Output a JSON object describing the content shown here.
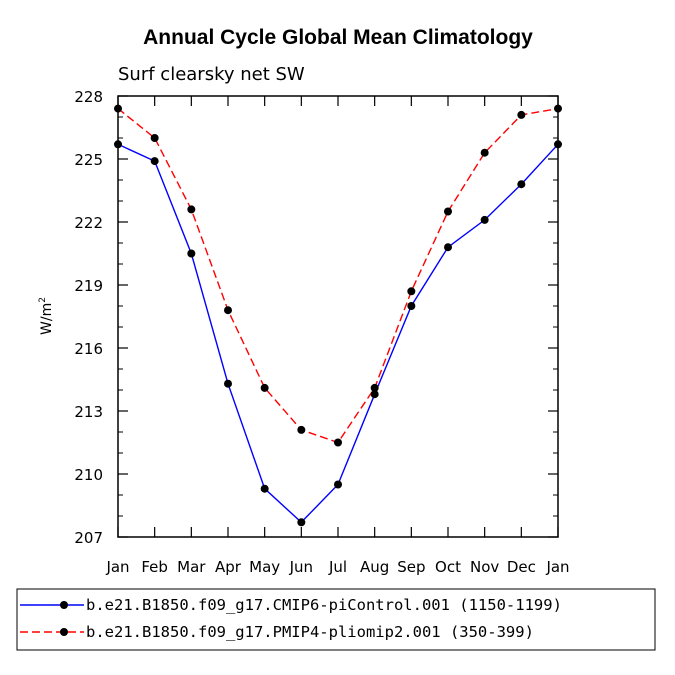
{
  "chart_data": {
    "type": "line",
    "title": "Annual Cycle Global Mean Climatology",
    "subtitle": "Surf clearsky net SW",
    "xlabel": "",
    "ylabel": "W/m",
    "ylabel_superscript": "2",
    "categories": [
      "Jan",
      "Feb",
      "Mar",
      "Apr",
      "May",
      "Jun",
      "Jul",
      "Aug",
      "Sep",
      "Oct",
      "Nov",
      "Dec",
      "Jan"
    ],
    "ylim": [
      207,
      228
    ],
    "yticks": [
      207,
      210,
      213,
      216,
      219,
      222,
      225,
      228
    ],
    "series": [
      {
        "name": "b.e21.B1850.f09_g17.CMIP6-piControl.001 (1150-1199)",
        "color": "#0000ff",
        "dash": "solid",
        "values": [
          225.7,
          224.9,
          220.5,
          214.3,
          209.3,
          207.7,
          209.5,
          213.8,
          218.0,
          220.8,
          222.1,
          223.8,
          225.7
        ]
      },
      {
        "name": "b.e21.B1850.f09_g17.PMIP4-pliomip2.001 (350-399)",
        "color": "#ff0000",
        "dash": "dashed",
        "values": [
          227.4,
          226.0,
          222.6,
          217.8,
          214.1,
          212.1,
          211.5,
          214.1,
          218.7,
          222.5,
          225.3,
          227.1,
          227.4
        ]
      }
    ],
    "legend_position": "bottom"
  }
}
